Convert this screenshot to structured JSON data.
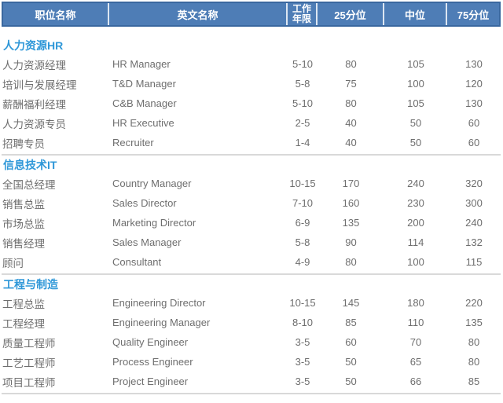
{
  "table": {
    "header": {
      "job_title": "职位名称",
      "english_name": "英文名称",
      "work_years": "工作年限",
      "p25": "25分位",
      "median": "中位",
      "p75": "75分位"
    },
    "sections": [
      {
        "title": "人力资源HR",
        "rows": [
          [
            "人力资源经理",
            "HR Manager",
            "5-10",
            "80",
            "105",
            "130"
          ],
          [
            "培训与发展经理",
            "T&D Manager",
            "5-8",
            "75",
            "100",
            "120"
          ],
          [
            "薪酬福利经理",
            "C&B Manager",
            "5-10",
            "80",
            "105",
            "130"
          ],
          [
            "人力资源专员",
            "HR Executive",
            "2-5",
            "40",
            "50",
            "60"
          ],
          [
            "招聘专员",
            "Recruiter",
            "1-4",
            "40",
            "50",
            "60"
          ]
        ]
      },
      {
        "title": "信息技术IT",
        "rows": [
          [
            "全国总经理",
            "Country Manager",
            "10-15",
            "170",
            "240",
            "320"
          ],
          [
            "销售总监",
            "Sales Director",
            "7-10",
            "160",
            "230",
            "300"
          ],
          [
            "市场总监",
            "Marketing Director",
            "6-9",
            "135",
            "200",
            "240"
          ],
          [
            "销售经理",
            "Sales Manager",
            "5-8",
            "90",
            "114",
            "132"
          ],
          [
            "顾问",
            "Consultant",
            "4-9",
            "80",
            "100",
            "115"
          ]
        ]
      },
      {
        "title": "工程与制造",
        "rows": [
          [
            "工程总监",
            "Engineering Director",
            "10-15",
            "145",
            "180",
            "220"
          ],
          [
            "工程经理",
            "Engineering Manager",
            "8-10",
            "85",
            "110",
            "135"
          ],
          [
            "质量工程师",
            "Quality Engineer",
            "3-5",
            "60",
            "70",
            "80"
          ],
          [
            "工艺工程师",
            "Process Engineer",
            "3-5",
            "50",
            "65",
            "80"
          ],
          [
            "项目工程师",
            "Project Engineer",
            "3-5",
            "50",
            "66",
            "85"
          ]
        ]
      }
    ]
  },
  "colors": {
    "header_bg": "#4e7db6",
    "header_border": "#3a689f",
    "header_divider": "#dce6f2",
    "section_title_text": "#2e97d8",
    "body_text": "#6e6e6e",
    "section_divider": "#d9d9d9"
  }
}
